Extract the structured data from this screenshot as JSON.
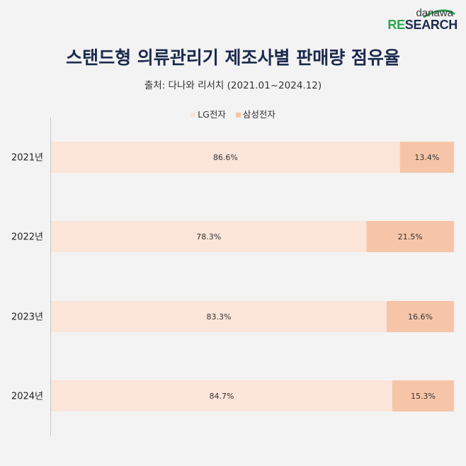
{
  "brand": {
    "name_top": "danawa",
    "name_bottom_accent": "RE",
    "name_bottom_rest": "SEARCH",
    "colors": {
      "navy": "#1c2a4e",
      "green": "#27a84a"
    }
  },
  "chart_data": {
    "type": "bar",
    "orientation": "horizontal",
    "stacked": true,
    "title": "스탠드형 의류관리기 제조사별 판매량 점유율",
    "subtitle": "출처: 다나와 리서치 (2021.01~2024.12)",
    "categories": [
      "2021년",
      "2022년",
      "2023년",
      "2024년"
    ],
    "series": [
      {
        "name": "LG전자",
        "color": "#fbe4d8",
        "values": [
          86.6,
          78.3,
          83.3,
          84.7
        ],
        "labels": [
          "86.6%",
          "78.3%",
          "83.3%",
          "84.7%"
        ]
      },
      {
        "name": "삼성전자",
        "color": "#f6c5a8",
        "values": [
          13.4,
          21.5,
          16.6,
          15.3
        ],
        "labels": [
          "13.4%",
          "21.5%",
          "16.6%",
          "15.3%"
        ]
      }
    ],
    "xlim": [
      0,
      100
    ],
    "legend_position": "top-center",
    "grid": false
  }
}
